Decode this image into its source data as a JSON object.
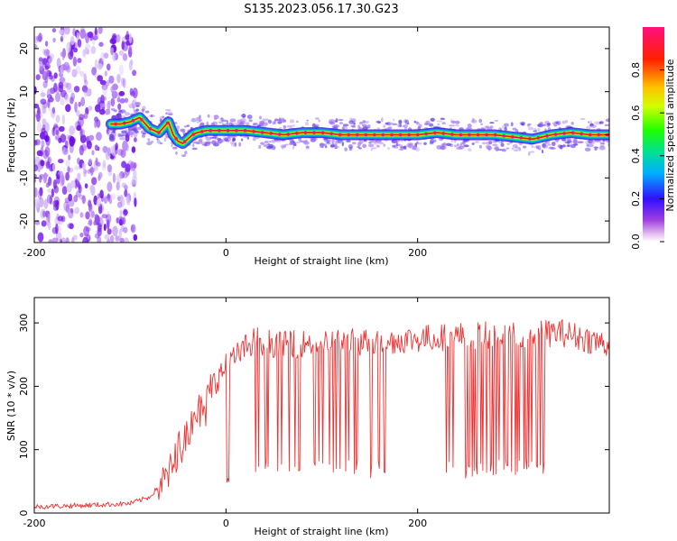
{
  "title": "S135.2023.056.17.30.G23",
  "colors": {
    "snr_line": "#f03030",
    "spectrogram_ridge_core": "#e0102a",
    "spectrogram_noise": "#8a2be2"
  },
  "chart_data": [
    {
      "type": "heatmap",
      "xlabel": "Height of straight line (km)",
      "ylabel": "Frequency (Hz)",
      "xlim": [
        -200,
        400
      ],
      "ylim": [
        -25,
        25
      ],
      "xticks": [
        -200,
        0,
        200
      ],
      "yticks": [
        -20,
        -10,
        0,
        10,
        20
      ],
      "colorbar": {
        "label": "Normalized spectral amplitude",
        "range": [
          0,
          1
        ],
        "ticks": [
          "0.0",
          "0.2",
          "0.4",
          "0.6",
          "0.8"
        ],
        "colormap": "rainbow (white-violet-blue-cyan-green-yellow-red-magenta)"
      },
      "noise_region": {
        "x_range": [
          -200,
          -100
        ],
        "y_range": [
          -25,
          25
        ]
      },
      "ridge": {
        "x": [
          -120,
          -110,
          -100,
          -90,
          -80,
          -70,
          -60,
          -55,
          -50,
          -45,
          -40,
          -35,
          -30,
          -20,
          0,
          20,
          40,
          60,
          80,
          100,
          120,
          140,
          160,
          180,
          200,
          220,
          240,
          260,
          280,
          300,
          320,
          340,
          360,
          380,
          400
        ],
        "y": [
          2.5,
          2.5,
          3,
          4,
          1.5,
          0.5,
          3,
          0,
          -1.5,
          -2,
          -1,
          0,
          0.5,
          1,
          1,
          1,
          0.5,
          0,
          0.5,
          0.5,
          0,
          0,
          0,
          0,
          0,
          0.5,
          0,
          0,
          0,
          -0.5,
          -1,
          0,
          0.5,
          0,
          0
        ]
      }
    },
    {
      "type": "line",
      "xlabel": "Height of straight line (km)",
      "ylabel": "SNR (10 * v/v)",
      "xlim": [
        -200,
        400
      ],
      "ylim": [
        0,
        340
      ],
      "xticks": [
        -200,
        0,
        200
      ],
      "yticks": [
        0,
        100,
        200,
        300
      ],
      "series": [
        {
          "envelope_x": [
            -200,
            -150,
            -100,
            -80,
            -60,
            -50,
            -40,
            -30,
            -20,
            -10,
            0,
            10,
            20,
            30,
            40,
            60,
            100,
            150,
            200,
            250,
            300,
            350,
            400
          ],
          "envelope_y": [
            10,
            12,
            15,
            25,
            60,
            100,
            130,
            160,
            190,
            210,
            230,
            245,
            260,
            275,
            270,
            265,
            270,
            270,
            275,
            280,
            280,
            285,
            265
          ],
          "dropouts": [
            {
              "x_range": [
                30,
                170
              ],
              "min_y": 55
            },
            {
              "x_range": [
                228,
                332
              ],
              "min_y": 55
            }
          ],
          "x_step_km": 1
        }
      ]
    }
  ]
}
